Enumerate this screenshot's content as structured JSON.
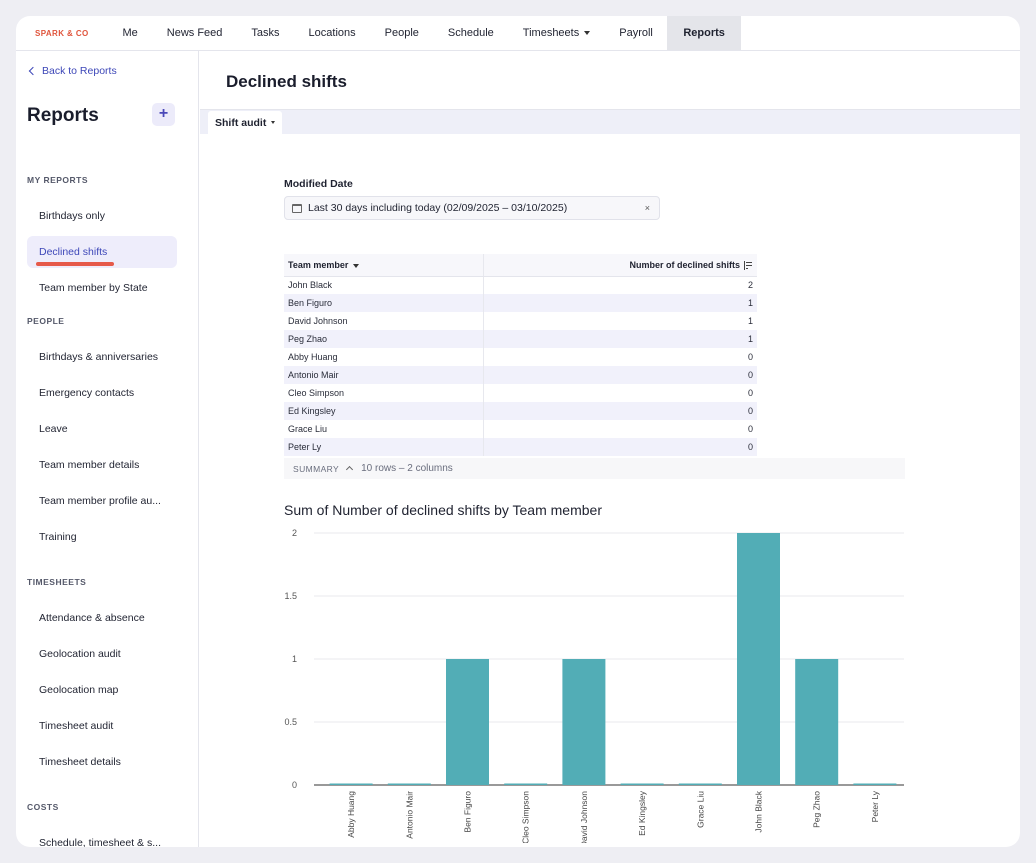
{
  "brand": "SPARK & CO",
  "nav": [
    "Me",
    "News Feed",
    "Tasks",
    "Locations",
    "People",
    "Schedule",
    "Timesheets",
    "Payroll",
    "Reports"
  ],
  "sidebar": {
    "back_label": "Back to Reports",
    "title": "Reports",
    "add_label": "+",
    "sections": {
      "my_reports": "MY REPORTS",
      "people": "PEOPLE",
      "timesheets": "TIMESHEETS",
      "costs": "COSTS"
    },
    "my_reports": [
      "Birthdays only",
      "Declined shifts",
      "Team member by State"
    ],
    "people": [
      "Birthdays & anniversaries",
      "Emergency contacts",
      "Leave",
      "Team member details",
      "Team member profile au...",
      "Training"
    ],
    "timesheets": [
      "Attendance & absence",
      "Geolocation audit",
      "Geolocation map",
      "Timesheet audit",
      "Timesheet details"
    ],
    "costs": [
      "Schedule, timesheet & s..."
    ]
  },
  "main": {
    "title": "Declined shifts",
    "subtab": "Shift audit",
    "filter_label": "Modified Date",
    "filter_value": "Last 30 days including today (02/09/2025 – 03/10/2025)",
    "filter_clear": "×"
  },
  "table": {
    "headers": [
      "Team member",
      "Number of declined shifts"
    ],
    "rows": [
      [
        "John Black",
        "2"
      ],
      [
        "Ben Figuro",
        "1"
      ],
      [
        "David Johnson",
        "1"
      ],
      [
        "Peg Zhao",
        "1"
      ],
      [
        "Abby Huang",
        "0"
      ],
      [
        "Antonio Mair",
        "0"
      ],
      [
        "Cleo Simpson",
        "0"
      ],
      [
        "Ed Kingsley",
        "0"
      ],
      [
        "Grace Liu",
        "0"
      ],
      [
        "Peter Ly",
        "0"
      ]
    ],
    "summary_label": "SUMMARY",
    "summary_text": "10 rows – 2 columns"
  },
  "chart_data": {
    "type": "bar",
    "title": "Sum of Number of declined shifts by Team member",
    "categories": [
      "Abby Huang",
      "Antonio Mair",
      "Ben Figuro",
      "Cleo Simpson",
      "David Johnson",
      "Ed Kingsley",
      "Grace Liu",
      "John Black",
      "Peg Zhao",
      "Peter Ly"
    ],
    "values": [
      0,
      0,
      1,
      0,
      1,
      0,
      0,
      2,
      1,
      0
    ],
    "ylim": [
      0,
      2
    ],
    "yticks": [
      "0",
      "0.5",
      "1",
      "1.5",
      "2"
    ],
    "xlabel": "",
    "ylabel": "",
    "bar_color": "#52adb6",
    "grid": true
  }
}
